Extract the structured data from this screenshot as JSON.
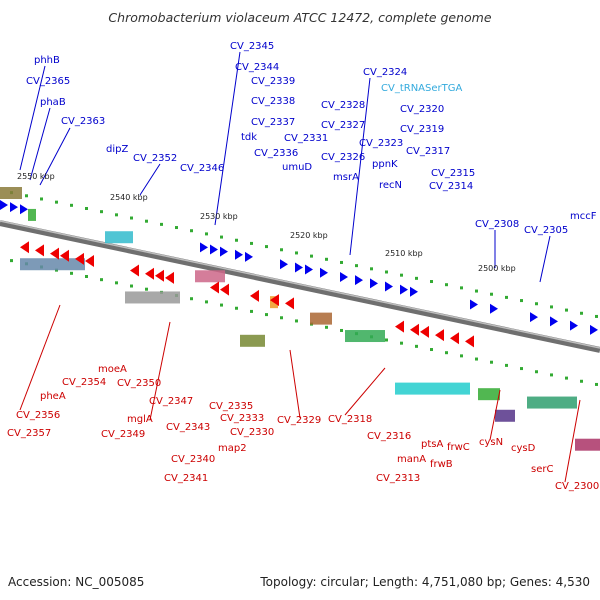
{
  "title": "Chromobacterium violaceum ATCC 12472, complete genome",
  "accession": "Accession: NC_005085",
  "summary": "Topology: circular; Length: 4,751,080 bp; Genes: 4,530",
  "colors": {
    "forward_gene": "#0000ee",
    "reverse_gene": "#ee0000",
    "forward_label": "#0000cc",
    "reverse_label": "#cc0000",
    "trna_label": "#33aadd",
    "backbone": "#888888",
    "tick": "#33aa33"
  },
  "scale_ticks": [
    "2550 kbp",
    "2540 kbp",
    "2530 kbp",
    "2520 kbp",
    "2510 kbp",
    "2500 kbp"
  ],
  "forward_genes": [
    "phhB",
    "CV_2365",
    "phaB",
    "CV_2363",
    "dipZ",
    "CV_2352",
    "CV_2346",
    "CV_2345",
    "CV_2344",
    "CV_2339",
    "CV_2338",
    "tdk",
    "CV_2337",
    "CV_2336",
    "CV_2331",
    "umuD",
    "CV_2328",
    "CV_2327",
    "CV_2326",
    "msrA",
    "CV_2324",
    "CV_2323",
    "ppnK",
    "recN",
    "CV_2320",
    "CV_2319",
    "CV_2317",
    "CV_2315",
    "CV_2314",
    "CV_2308",
    "CV_2305",
    "mccF"
  ],
  "trna_genes": [
    "CV_tRNASerTGA"
  ],
  "reverse_genes": [
    "CV_2357",
    "CV_2356",
    "pheA",
    "CV_2354",
    "moeA",
    "CV_2350",
    "CV_2349",
    "mglA",
    "CV_2347",
    "CV_2343",
    "CV_2341",
    "CV_2340",
    "CV_2335",
    "CV_2333",
    "map2",
    "CV_2330",
    "CV_2329",
    "CV_2318",
    "CV_2316",
    "manA",
    "CV_2313",
    "ptsA",
    "frwB",
    "frwC",
    "cysN",
    "cysD",
    "serC",
    "CV_2300"
  ]
}
